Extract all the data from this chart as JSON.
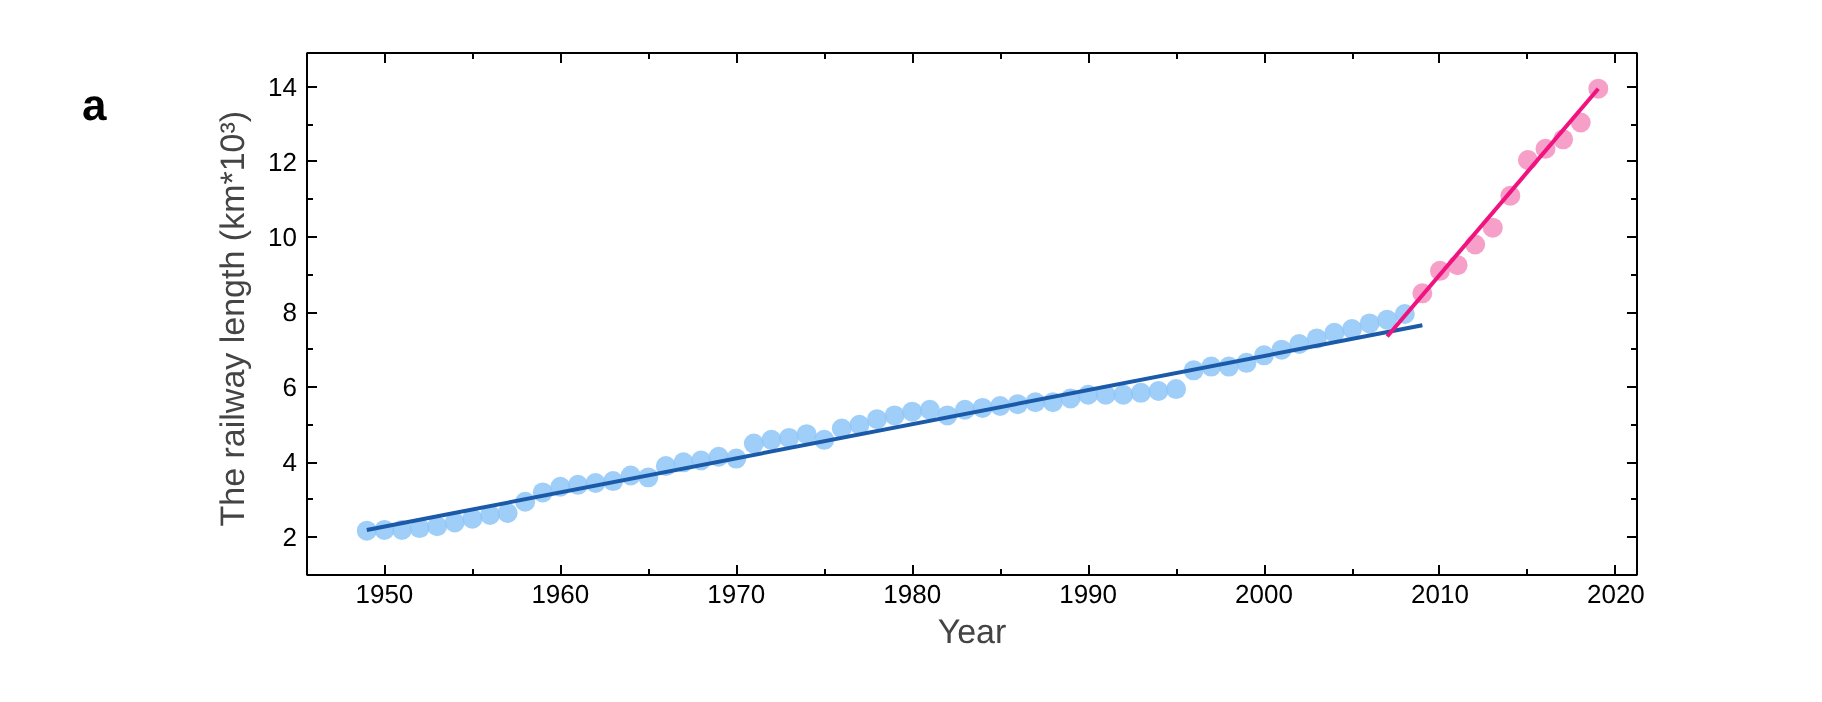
{
  "chart_data": {
    "type": "scatter",
    "xlabel": "Year",
    "ylabel": "The railway length  (km*10³)",
    "annotations": [
      "a"
    ],
    "grid": false,
    "xlim": [
      1945.6,
      2021.2
    ],
    "ylim": [
      1.0,
      14.9
    ],
    "xticks": [
      1950,
      1960,
      1970,
      1980,
      1990,
      2000,
      2010,
      2020
    ],
    "yticks": [
      2,
      4,
      6,
      8,
      10,
      12,
      14
    ],
    "series": [
      {
        "marker": "circle",
        "color": "#8ec5f7",
        "x": [
          1949,
          1950,
          1951,
          1952,
          1953,
          1954,
          1955,
          1956,
          1957,
          1958,
          1959,
          1960,
          1961,
          1962,
          1963,
          1964,
          1965,
          1966,
          1967,
          1968,
          1969,
          1970,
          1971,
          1972,
          1973,
          1974,
          1975,
          1976,
          1977,
          1978,
          1979,
          1980,
          1981,
          1982,
          1983,
          1984,
          1985,
          1986,
          1987,
          1988,
          1989,
          1990,
          1991,
          1992,
          1993,
          1994,
          1995,
          1996,
          1997,
          1998,
          1999,
          2000,
          2001,
          2002,
          2003,
          2004,
          2005,
          2006,
          2007,
          2008
        ],
        "values": [
          2.18,
          2.2,
          2.2,
          2.25,
          2.3,
          2.4,
          2.5,
          2.6,
          2.65,
          2.95,
          3.2,
          3.35,
          3.4,
          3.45,
          3.5,
          3.65,
          3.6,
          3.9,
          4.0,
          4.05,
          4.15,
          4.1,
          4.5,
          4.6,
          4.65,
          4.75,
          4.6,
          4.9,
          5.0,
          5.15,
          5.25,
          5.35,
          5.4,
          5.25,
          5.4,
          5.45,
          5.5,
          5.55,
          5.6,
          5.6,
          5.7,
          5.8,
          5.8,
          5.8,
          5.85,
          5.9,
          5.95,
          6.45,
          6.55,
          6.55,
          6.65,
          6.85,
          7.0,
          7.15,
          7.3,
          7.45,
          7.55,
          7.7,
          7.8,
          7.95
        ]
      },
      {
        "marker": "circle",
        "color": "#f48fc0",
        "x": [
          2009,
          2010,
          2011,
          2012,
          2013,
          2014,
          2015,
          2016,
          2017,
          2018,
          2019
        ],
        "values": [
          8.5,
          9.1,
          9.25,
          9.8,
          10.25,
          11.1,
          12.05,
          12.35,
          12.6,
          13.05,
          13.95
        ]
      },
      {
        "type": "line",
        "color": "#1a5aa8",
        "x": [
          1949,
          2009
        ],
        "values": [
          2.2,
          7.65
        ]
      },
      {
        "type": "line",
        "color": "#f0137f",
        "x": [
          2007,
          2019
        ],
        "values": [
          7.35,
          13.95
        ]
      }
    ]
  }
}
